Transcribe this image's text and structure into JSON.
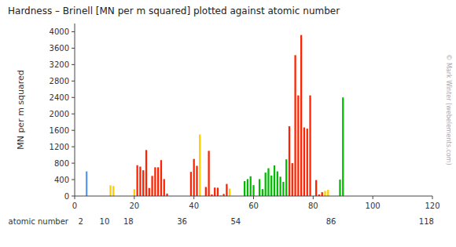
{
  "chart_data": {
    "type": "bar",
    "title": "Hardness – Brinell [MN per m squared] plotted against atomic number",
    "ylabel": "MN per m squared",
    "xlabel": "atomic number",
    "x": [
      4,
      12,
      13,
      20,
      21,
      22,
      23,
      24,
      25,
      26,
      27,
      28,
      29,
      30,
      31,
      39,
      40,
      41,
      42,
      44,
      45,
      46,
      47,
      48,
      49,
      50,
      51,
      52,
      57,
      58,
      59,
      60,
      62,
      63,
      64,
      65,
      66,
      67,
      68,
      69,
      70,
      71,
      72,
      73,
      74,
      75,
      76,
      77,
      78,
      79,
      81,
      82,
      83,
      84,
      85,
      89,
      90
    ],
    "values": [
      600,
      260,
      245,
      167,
      750,
      716,
      628,
      1120,
      196,
      490,
      700,
      700,
      874,
      412,
      60,
      589,
      903,
      736,
      1500,
      220,
      1100,
      37,
      206,
      203,
      9,
      51,
      294,
      180,
      363,
      412,
      481,
      265,
      412,
      169,
      570,
      677,
      500,
      746,
      600,
      471,
      343,
      893,
      1700,
      800,
      3430,
      2450,
      3920,
      1670,
      1640,
      2450,
      388,
      38,
      94,
      125,
      150,
      400,
      2400
    ],
    "colors": [
      "#5599ff",
      "#ffcc00",
      "#ffcc00",
      "#ffcc00",
      "#ff2200",
      "#ff2200",
      "#ff2200",
      "#ff2200",
      "#ff2200",
      "#ff2200",
      "#ff2200",
      "#ff2200",
      "#ff2200",
      "#ff2200",
      "#ff2200",
      "#ff2200",
      "#ff2200",
      "#ff2200",
      "#ffcc00",
      "#ff2200",
      "#ff2200",
      "#ff2200",
      "#ff2200",
      "#ff2200",
      "#ff2200",
      "#ff2200",
      "#ff2200",
      "#ffcc00",
      "#00bb00",
      "#00bb00",
      "#00bb00",
      "#00bb00",
      "#00bb00",
      "#00bb00",
      "#00bb00",
      "#00bb00",
      "#00bb00",
      "#00bb00",
      "#00bb00",
      "#00bb00",
      "#00bb00",
      "#00bb00",
      "#ff2200",
      "#ff2200",
      "#ff2200",
      "#ff2200",
      "#ff2200",
      "#ff2200",
      "#ff2200",
      "#ff2200",
      "#ff2200",
      "#ff2200",
      "#ff2200",
      "#ffcc00",
      "#ffcc00",
      "#00bb00",
      "#00bb00"
    ],
    "xlim": [
      0,
      120
    ],
    "ylim": [
      0,
      4200
    ],
    "xticks": [
      0,
      20,
      40,
      60,
      80,
      100,
      120
    ],
    "yticks": [
      0,
      400,
      800,
      1200,
      1600,
      2000,
      2400,
      2800,
      3200,
      3600,
      4000
    ],
    "grid": false,
    "annotations": [
      {
        "text": "© Mark Winter (webelements.com)"
      },
      {
        "x": 2
      },
      {
        "x": 10
      },
      {
        "x": 18
      },
      {
        "x": 36
      },
      {
        "x": 54
      },
      {
        "x": 86
      },
      {
        "x": 118
      }
    ]
  }
}
